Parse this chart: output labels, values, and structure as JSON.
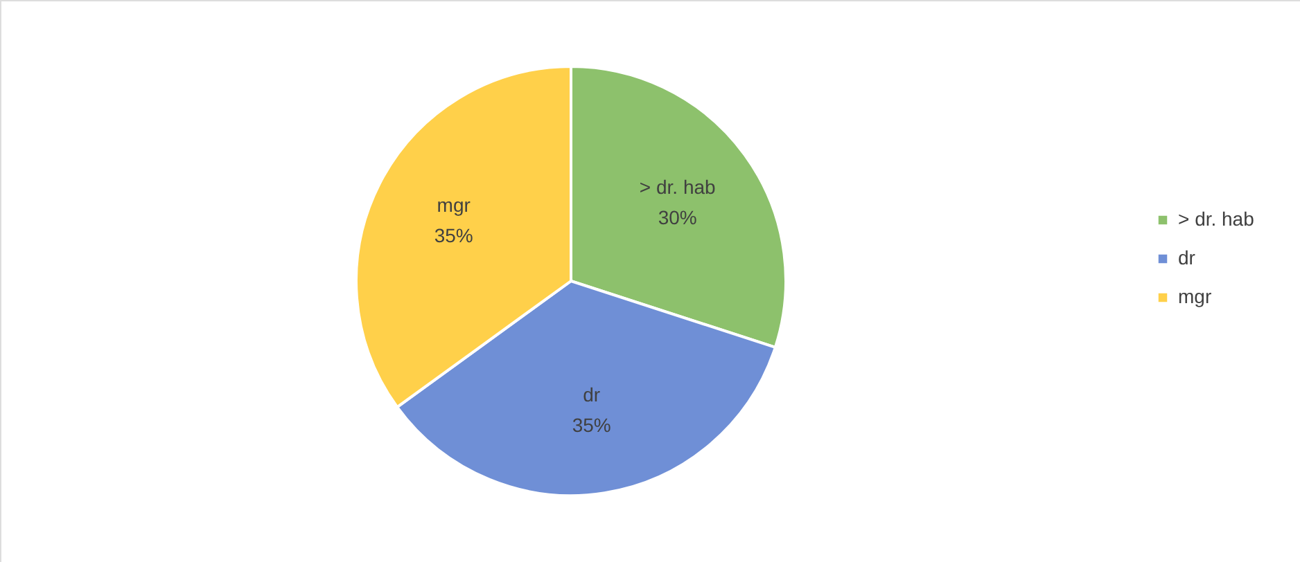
{
  "chart_data": {
    "type": "pie",
    "categories": [
      "> dr. hab",
      "dr",
      "mgr"
    ],
    "values": [
      30,
      35,
      35
    ],
    "colors": [
      "#8dc16c",
      "#6f8fd6",
      "#ffd04a"
    ],
    "value_labels": [
      "30%",
      "35%",
      "35%"
    ],
    "legend": "right"
  }
}
